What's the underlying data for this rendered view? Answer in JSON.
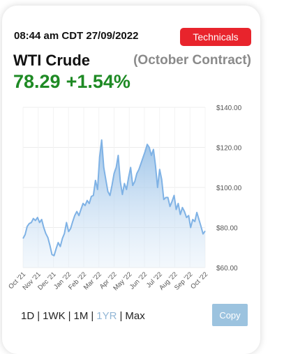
{
  "header": {
    "timestamp": "08:44 am CDT 27/09/2022",
    "technicals_label": "Technicals"
  },
  "quote": {
    "title": "WTI Crude",
    "contract": "(October Contract)",
    "price": "78.29",
    "change": "+1.54%"
  },
  "colors": {
    "accent_red": "#e8242c",
    "price_green": "#1e8a24",
    "line_blue": "#7fb2e5",
    "active_range": "#93b7d6"
  },
  "range_selector": {
    "options": [
      "1D",
      "1WK",
      "1M",
      "1YR",
      "Max"
    ],
    "active": "1YR"
  },
  "copy_label": "Copy",
  "chart_data": {
    "type": "area",
    "title": "",
    "xlabel": "",
    "ylabel": "",
    "ylim": [
      60,
      140
    ],
    "yticks": [
      "$140.00",
      "$120.00",
      "$100.00",
      "$80.00",
      "$60.00"
    ],
    "xticks": [
      "Oct '21",
      "Nov '21",
      "Dec '21",
      "Jan '22",
      "Feb '22",
      "Mar '22",
      "Apr '22",
      "May '22",
      "Jun '22",
      "Jul '22",
      "Aug '22",
      "Sep '22",
      "Oct '22"
    ],
    "grid": true,
    "series": [
      {
        "values": [
          74.5,
          76.5,
          80.5,
          82.0,
          82.5,
          84.5,
          83.5,
          85.0,
          82.5,
          84.0,
          80.0,
          77.0,
          75.0,
          71.0,
          66.5,
          66.0,
          69.5,
          72.5,
          70.5,
          74.5,
          77.0,
          82.5,
          78.0,
          79.5,
          83.0,
          86.0,
          88.0,
          86.0,
          89.0,
          92.0,
          91.0,
          93.5,
          92.0,
          95.5,
          96.0,
          103.5,
          99.0,
          115.0,
          123.7,
          110.0,
          104.0,
          98.0,
          96.0,
          101.0,
          107.0,
          110.0,
          116.0,
          103.0,
          96.5,
          102.0,
          99.0,
          105.0,
          110.0,
          101.0,
          103.0,
          107.0,
          109.0,
          112.0,
          115.0,
          118.0,
          121.5,
          120.0,
          116.0,
          119.0,
          111.0,
          100.0,
          109.0,
          104.0,
          94.0,
          95.0,
          95.0,
          90.5,
          93.0,
          96.0,
          89.0,
          92.0,
          86.5,
          90.0,
          88.0,
          85.0,
          86.0,
          80.0,
          84.0,
          83.0,
          87.5,
          84.0,
          80.5,
          76.8,
          78.3
        ]
      }
    ]
  }
}
